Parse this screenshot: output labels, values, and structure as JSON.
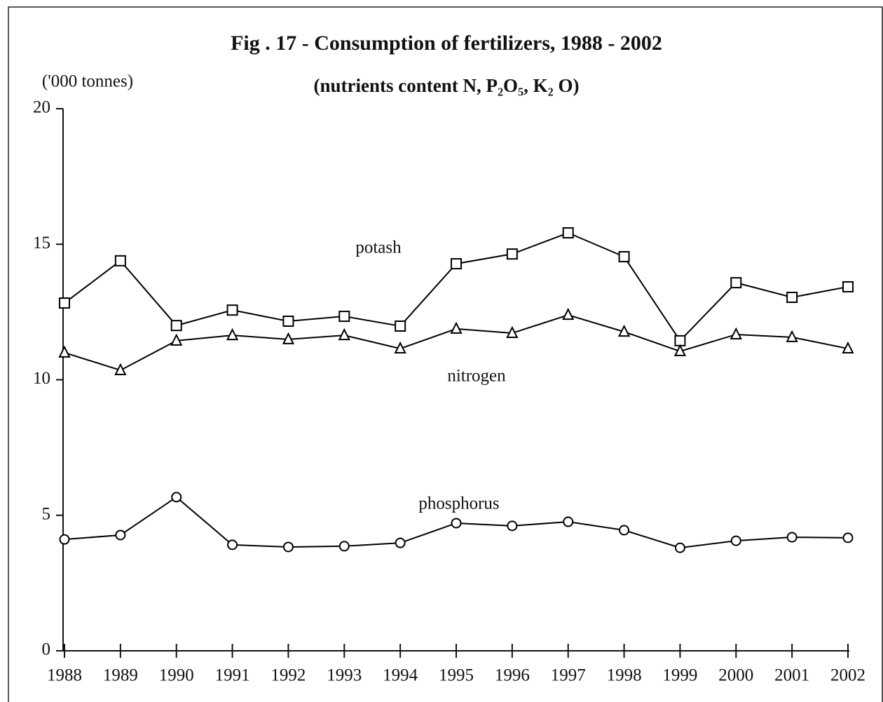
{
  "chart_data": {
    "type": "line",
    "title": "Fig . 17 - Consumption of fertilizers, 1988 - 2002",
    "subtitle": "(nutrients content N, P₂O₅, K₂ O)",
    "y_label": "('000 tonnes)",
    "categories": [
      "1988",
      "1989",
      "1990",
      "1991",
      "1992",
      "1993",
      "1994",
      "1995",
      "1996",
      "1997",
      "1998",
      "1999",
      "2000",
      "2001",
      "2002"
    ],
    "series": [
      {
        "name": "potash",
        "color": "#000000",
        "marker": "square",
        "values": [
          12.83,
          14.39,
          12.0,
          12.57,
          12.16,
          12.34,
          11.98,
          14.28,
          14.64,
          15.42,
          14.54,
          11.44,
          13.58,
          13.04,
          13.43
        ]
      },
      {
        "name": "nitrogen",
        "color": "#000000",
        "marker": "triangle",
        "values": [
          11.0,
          10.35,
          11.44,
          11.64,
          11.49,
          11.64,
          11.15,
          11.88,
          11.72,
          12.39,
          11.77,
          11.05,
          11.67,
          11.57,
          11.15
        ]
      },
      {
        "name": "phosphorus",
        "color": "#000000",
        "marker": "circle",
        "values": [
          4.11,
          4.27,
          5.67,
          3.91,
          3.83,
          3.86,
          3.98,
          4.71,
          4.61,
          4.76,
          4.45,
          3.8,
          4.06,
          4.19,
          4.17
        ]
      }
    ],
    "ylim": [
      0,
      20
    ],
    "yticks": [
      0,
      5,
      10,
      15,
      20
    ],
    "grid": false
  }
}
